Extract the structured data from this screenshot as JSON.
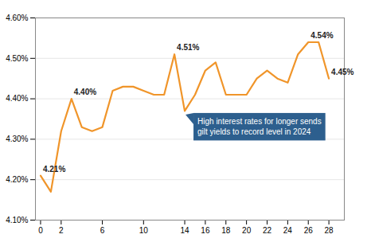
{
  "chart_data": {
    "type": "line",
    "x": [
      0,
      1,
      2,
      3,
      4,
      5,
      6,
      7,
      8,
      9,
      10,
      11,
      12,
      13,
      14,
      15,
      16,
      17,
      18,
      19,
      20,
      21,
      22,
      23,
      24,
      25,
      26,
      27,
      28
    ],
    "values": [
      4.21,
      4.17,
      4.32,
      4.4,
      4.33,
      4.32,
      4.33,
      4.42,
      4.43,
      4.43,
      4.42,
      4.41,
      4.41,
      4.51,
      4.37,
      4.41,
      4.47,
      4.49,
      4.41,
      4.41,
      4.41,
      4.45,
      4.47,
      4.45,
      4.44,
      4.51,
      4.54,
      4.54,
      4.45
    ],
    "color": "#f0952a",
    "xlim": [
      -0.5,
      29.5
    ],
    "xticks": [
      0,
      2,
      6,
      10,
      14,
      16,
      18,
      20,
      22,
      24,
      26,
      28
    ],
    "ylim": [
      4.1,
      4.6
    ],
    "yticks": [
      {
        "value": 4.1,
        "label": "4.10%"
      },
      {
        "value": 4.2,
        "label": "4.20%"
      },
      {
        "value": 4.3,
        "label": "4.30%"
      },
      {
        "value": 4.4,
        "label": "4.40%"
      },
      {
        "value": 4.5,
        "label": "4.50%"
      },
      {
        "value": 4.6,
        "label": "4.60%"
      }
    ],
    "grid": "y",
    "annotations": [
      {
        "x": 0,
        "y": 4.21,
        "text": "4.21%"
      },
      {
        "x": 3,
        "y": 4.4,
        "text": "4.40%"
      },
      {
        "x": 13,
        "y": 4.51,
        "text": "4.51%"
      },
      {
        "x": 26,
        "y": 4.54,
        "text": "4.54%"
      },
      {
        "x": 28,
        "y": 4.45,
        "text": "4.45%"
      },
      {
        "x": 14,
        "y": 4.37,
        "text": "High interest rates for longer sends\ngilt yields to record level in 2024",
        "color": "#2d5f8e",
        "text_color": "#ffffff"
      }
    ]
  }
}
